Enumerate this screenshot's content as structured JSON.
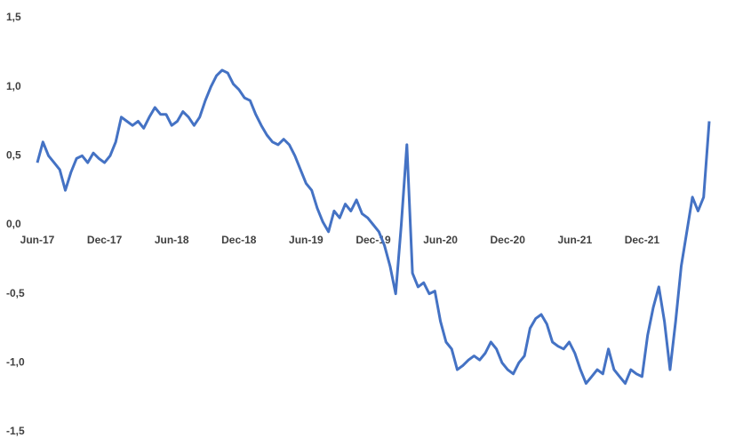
{
  "chart_data": {
    "type": "line",
    "color": "#4472c4",
    "categories": [
      "Jun-17",
      null,
      null,
      null,
      null,
      null,
      null,
      null,
      null,
      null,
      null,
      null,
      "Dec-17",
      null,
      null,
      null,
      null,
      null,
      null,
      null,
      null,
      null,
      null,
      null,
      "Jun-18",
      null,
      null,
      null,
      null,
      null,
      null,
      null,
      null,
      null,
      null,
      null,
      "Dec-18",
      null,
      null,
      null,
      null,
      null,
      null,
      null,
      null,
      null,
      null,
      null,
      "Jun-19",
      null,
      null,
      null,
      null,
      null,
      null,
      null,
      null,
      null,
      null,
      null,
      "Dec-19",
      null,
      null,
      null,
      null,
      null,
      null,
      null,
      null,
      null,
      null,
      null,
      "Jun-20",
      null,
      null,
      null,
      null,
      null,
      null,
      null,
      null,
      null,
      null,
      null,
      "Dec-20",
      null,
      null,
      null,
      null,
      null,
      null,
      null,
      null,
      null,
      null,
      null,
      "Jun-21",
      null,
      null,
      null,
      null,
      null,
      null,
      null,
      null,
      null,
      null,
      null,
      "Dec-21",
      null,
      null,
      null,
      null,
      null,
      null,
      null,
      null,
      null,
      null,
      null,
      null
    ],
    "values": [
      0.45,
      0.6,
      0.5,
      0.45,
      0.4,
      0.25,
      0.38,
      0.48,
      0.5,
      0.45,
      0.52,
      0.48,
      0.45,
      0.5,
      0.6,
      0.78,
      0.75,
      0.72,
      0.75,
      0.7,
      0.78,
      0.85,
      0.8,
      0.8,
      0.72,
      0.75,
      0.82,
      0.78,
      0.72,
      0.78,
      0.9,
      1.0,
      1.08,
      1.12,
      1.1,
      1.02,
      0.98,
      0.92,
      0.9,
      0.8,
      0.72,
      0.65,
      0.6,
      0.58,
      0.62,
      0.58,
      0.5,
      0.4,
      0.3,
      0.25,
      0.12,
      0.02,
      -0.05,
      0.1,
      0.05,
      0.15,
      0.1,
      0.18,
      0.08,
      0.05,
      0.0,
      -0.05,
      -0.15,
      -0.3,
      -0.5,
      0.0,
      0.58,
      -0.35,
      -0.45,
      -0.42,
      -0.5,
      -0.48,
      -0.7,
      -0.85,
      -0.9,
      -1.05,
      -1.02,
      -0.98,
      -0.95,
      -0.98,
      -0.93,
      -0.85,
      -0.9,
      -1.0,
      -1.05,
      -1.08,
      -1.0,
      -0.95,
      -0.75,
      -0.68,
      -0.65,
      -0.72,
      -0.85,
      -0.88,
      -0.9,
      -0.85,
      -0.93,
      -1.05,
      -1.15,
      -1.1,
      -1.05,
      -1.08,
      -0.9,
      -1.05,
      -1.1,
      -1.15,
      -1.05,
      -1.08,
      -1.1,
      -0.8,
      -0.6,
      -0.45,
      -0.7,
      -1.05,
      -0.7,
      -0.3,
      -0.05,
      0.2,
      0.1,
      0.2,
      0.75
    ],
    "ylim": [
      -1.5,
      1.5
    ],
    "yticks": [
      {
        "value": -1.5,
        "label": "-1,5"
      },
      {
        "value": -1,
        "label": "-1,0"
      },
      {
        "value": -0.5,
        "label": "-0,5"
      },
      {
        "value": 0,
        "label": "0,0"
      },
      {
        "value": 0.5,
        "label": "0,5"
      },
      {
        "value": 1,
        "label": "1,0"
      },
      {
        "value": 1.5,
        "label": "1,5"
      }
    ]
  }
}
